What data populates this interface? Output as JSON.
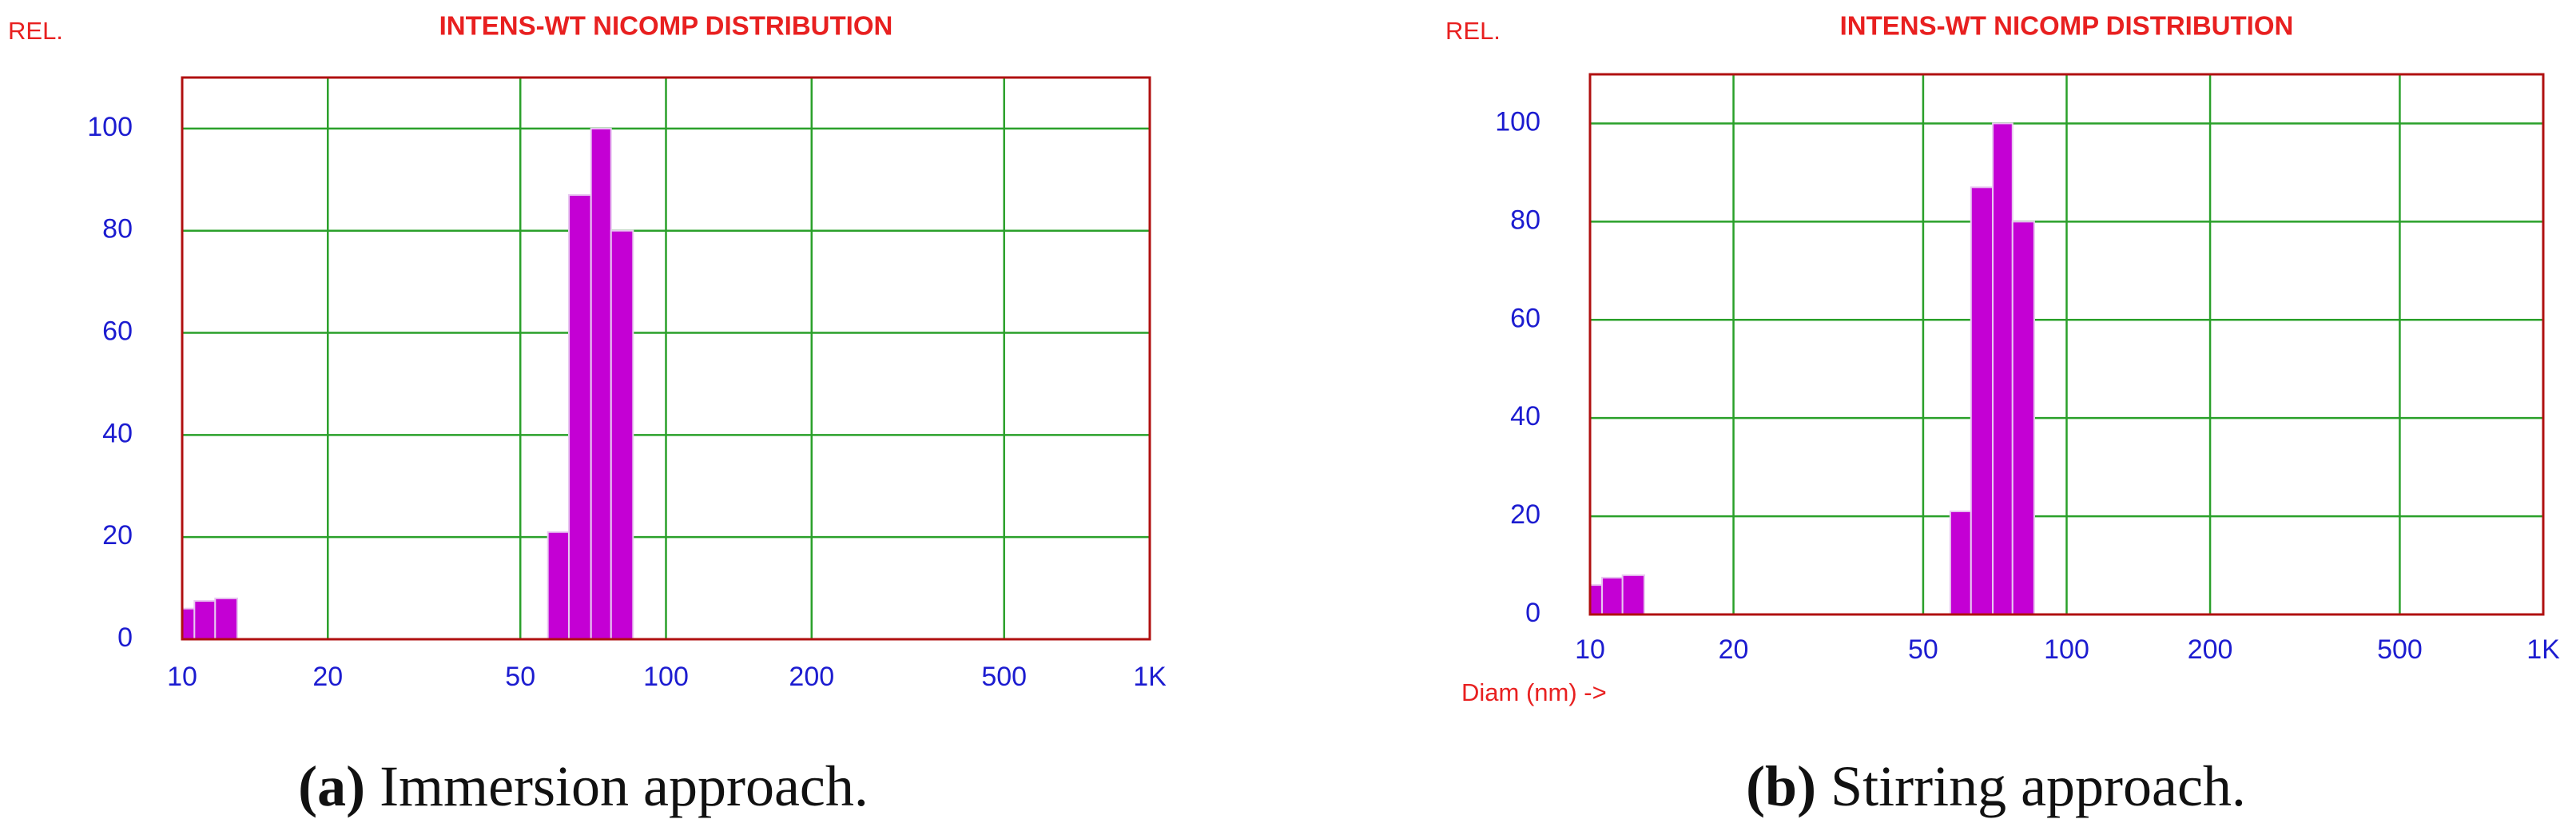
{
  "chart_data": [
    {
      "type": "histogram",
      "title": "INTENS-WT NICOMP DISTRIBUTION",
      "y_label": "REL.",
      "caption_label": "(a)",
      "caption": "Immersion approach.",
      "bins": [
        10,
        10.6,
        11.7,
        13,
        57,
        63,
        70,
        77,
        85.5
      ],
      "values": [
        6,
        7.5,
        8,
        null,
        21,
        87,
        100,
        80
      ],
      "color": "#c400d4",
      "x_log": true,
      "grid": true,
      "xlim": [
        10,
        1000
      ],
      "xticks": [
        10,
        20,
        50,
        100,
        200,
        500,
        {
          "value": 1000,
          "label": "1K"
        }
      ],
      "ylim": [
        0,
        110
      ],
      "yticks": [
        0,
        20,
        40,
        60,
        80,
        100
      ]
    },
    {
      "type": "histogram",
      "title": "INTENS-WT NICOMP DISTRIBUTION",
      "y_label": "REL.",
      "x_label": "Diam (nm) ->",
      "caption_label": "(b)",
      "caption": "Stirring approach.",
      "bins": [
        10,
        10.6,
        11.7,
        13,
        57,
        63,
        70,
        77,
        85.5
      ],
      "values": [
        6,
        7.5,
        8,
        null,
        21,
        87,
        100,
        80
      ],
      "color": "#c400d4",
      "x_log": true,
      "grid": true,
      "xlim": [
        10,
        1000
      ],
      "xticks": [
        10,
        20,
        50,
        100,
        200,
        500,
        {
          "value": 1000,
          "label": "1K"
        }
      ],
      "ylim": [
        0,
        110
      ],
      "yticks": [
        0,
        20,
        40,
        60,
        80,
        100
      ]
    }
  ]
}
